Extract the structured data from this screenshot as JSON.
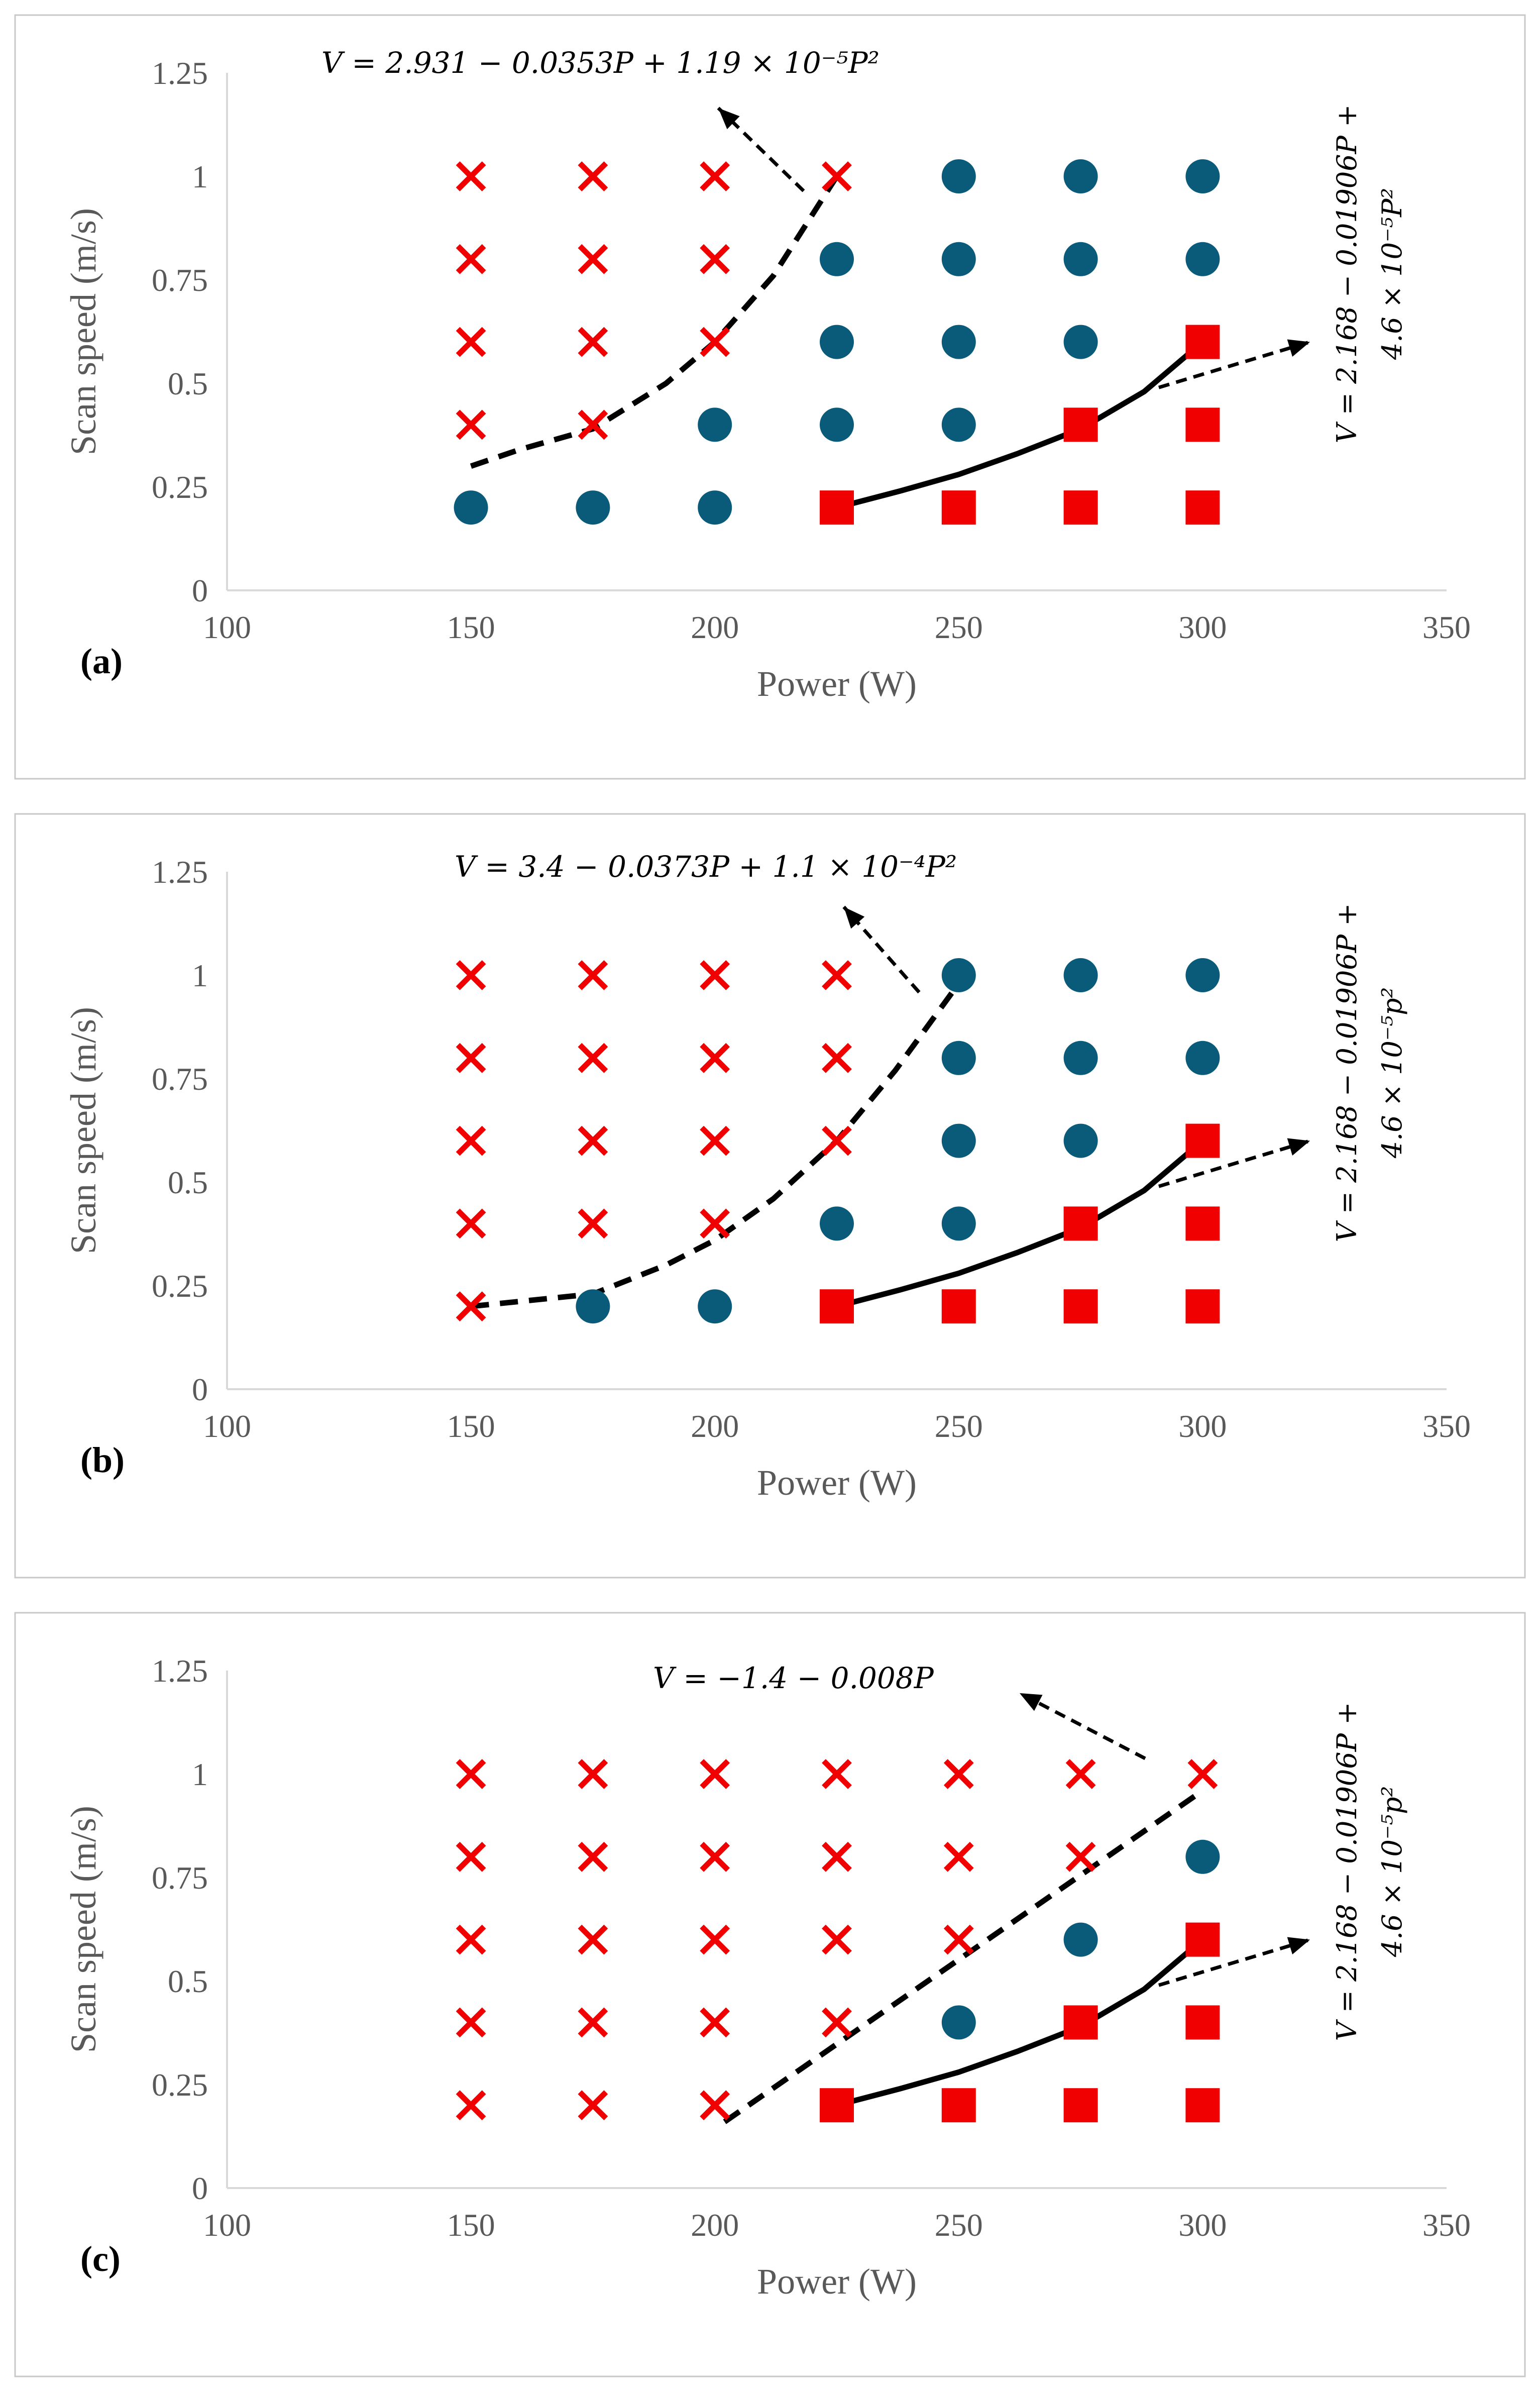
{
  "colors": {
    "circle": "#0a5a7a",
    "square": "#f00000",
    "cross": "#f00000",
    "line": "#000000"
  },
  "chart_data": [
    {
      "type": "scatter",
      "panel_label": "(a)",
      "xlabel": "Power (W)",
      "ylabel": "Scan speed (m/s)",
      "xlim": [
        100,
        350
      ],
      "ylim": [
        0,
        1.25
      ],
      "xticks": [
        "100",
        "150",
        "200",
        "250",
        "300",
        "350"
      ],
      "yticks": [
        "0",
        "0.25",
        "0.5",
        "0.75",
        "1",
        "1.25"
      ],
      "series": [
        {
          "name": "cross",
          "marker": "x",
          "points": [
            [
              150,
              1
            ],
            [
              175,
              1
            ],
            [
              200,
              1
            ],
            [
              225,
              1
            ],
            [
              150,
              0.8
            ],
            [
              175,
              0.8
            ],
            [
              200,
              0.8
            ],
            [
              150,
              0.6
            ],
            [
              175,
              0.6
            ],
            [
              200,
              0.6
            ],
            [
              150,
              0.4
            ],
            [
              175,
              0.4
            ]
          ]
        },
        {
          "name": "circle",
          "marker": "circle",
          "points": [
            [
              250,
              1
            ],
            [
              275,
              1
            ],
            [
              300,
              1
            ],
            [
              225,
              0.8
            ],
            [
              250,
              0.8
            ],
            [
              275,
              0.8
            ],
            [
              300,
              0.8
            ],
            [
              225,
              0.6
            ],
            [
              250,
              0.6
            ],
            [
              275,
              0.6
            ],
            [
              200,
              0.4
            ],
            [
              225,
              0.4
            ],
            [
              250,
              0.4
            ],
            [
              150,
              0.2
            ],
            [
              175,
              0.2
            ],
            [
              200,
              0.2
            ]
          ]
        },
        {
          "name": "square",
          "marker": "square",
          "points": [
            [
              300,
              0.6
            ],
            [
              275,
              0.4
            ],
            [
              300,
              0.4
            ],
            [
              225,
              0.2
            ],
            [
              250,
              0.2
            ],
            [
              275,
              0.2
            ],
            [
              300,
              0.2
            ]
          ]
        }
      ],
      "fit_lines": [
        {
          "style": "dashed",
          "points": [
            [
              150,
              0.3
            ],
            [
              160,
              0.34
            ],
            [
              175,
              0.39
            ],
            [
              190,
              0.5
            ],
            [
              200,
              0.6
            ],
            [
              212,
              0.76
            ],
            [
              225,
              1.0
            ]
          ]
        },
        {
          "style": "solid",
          "points": [
            [
              225,
              0.2
            ],
            [
              238,
              0.24
            ],
            [
              250,
              0.28
            ],
            [
              262,
              0.33
            ],
            [
              275,
              0.39
            ],
            [
              288,
              0.48
            ],
            [
              300,
              0.6
            ]
          ]
        }
      ],
      "equations": {
        "top": "V = 2.931 − 0.0353P + 1.19 × 10⁻⁵P²",
        "right_line1": "V = 2.168 − 0.01906P +",
        "right_line2": "4.6 × 10⁻⁵P²"
      }
    },
    {
      "type": "scatter",
      "panel_label": "(b)",
      "xlabel": "Power (W)",
      "ylabel": "Scan speed (m/s)",
      "xlim": [
        100,
        350
      ],
      "ylim": [
        0,
        1.25
      ],
      "xticks": [
        "100",
        "150",
        "200",
        "250",
        "300",
        "350"
      ],
      "yticks": [
        "0",
        "0.25",
        "0.5",
        "0.75",
        "1",
        "1.25"
      ],
      "series": [
        {
          "name": "cross",
          "marker": "x",
          "points": [
            [
              150,
              1
            ],
            [
              175,
              1
            ],
            [
              200,
              1
            ],
            [
              225,
              1
            ],
            [
              150,
              0.8
            ],
            [
              175,
              0.8
            ],
            [
              200,
              0.8
            ],
            [
              225,
              0.8
            ],
            [
              150,
              0.6
            ],
            [
              175,
              0.6
            ],
            [
              200,
              0.6
            ],
            [
              225,
              0.6
            ],
            [
              150,
              0.4
            ],
            [
              175,
              0.4
            ],
            [
              200,
              0.4
            ],
            [
              150,
              0.2
            ]
          ]
        },
        {
          "name": "circle",
          "marker": "circle",
          "points": [
            [
              250,
              1
            ],
            [
              275,
              1
            ],
            [
              300,
              1
            ],
            [
              250,
              0.8
            ],
            [
              275,
              0.8
            ],
            [
              300,
              0.8
            ],
            [
              250,
              0.6
            ],
            [
              275,
              0.6
            ],
            [
              225,
              0.4
            ],
            [
              250,
              0.4
            ],
            [
              175,
              0.2
            ],
            [
              200,
              0.2
            ]
          ]
        },
        {
          "name": "square",
          "marker": "square",
          "points": [
            [
              300,
              0.6
            ],
            [
              275,
              0.4
            ],
            [
              300,
              0.4
            ],
            [
              225,
              0.2
            ],
            [
              250,
              0.2
            ],
            [
              275,
              0.2
            ],
            [
              300,
              0.2
            ]
          ]
        }
      ],
      "fit_lines": [
        {
          "style": "dashed",
          "points": [
            [
              150,
              0.2
            ],
            [
              175,
              0.23
            ],
            [
              190,
              0.3
            ],
            [
              200,
              0.36
            ],
            [
              212,
              0.46
            ],
            [
              225,
              0.6
            ],
            [
              237,
              0.77
            ],
            [
              250,
              0.98
            ]
          ]
        },
        {
          "style": "solid",
          "points": [
            [
              225,
              0.2
            ],
            [
              238,
              0.24
            ],
            [
              250,
              0.28
            ],
            [
              262,
              0.33
            ],
            [
              275,
              0.39
            ],
            [
              288,
              0.48
            ],
            [
              300,
              0.6
            ]
          ]
        }
      ],
      "equations": {
        "top": "V = 3.4 − 0.0373P + 1.1 × 10⁻⁴P²",
        "right_line1": "V = 2.168 − 0.01906P +",
        "right_line2": "4.6 × 10⁻⁵p²"
      }
    },
    {
      "type": "scatter",
      "panel_label": "(c)",
      "xlabel": "Power (W)",
      "ylabel": "Scan speed (m/s)",
      "xlim": [
        100,
        350
      ],
      "ylim": [
        0,
        1.25
      ],
      "xticks": [
        "100",
        "150",
        "200",
        "250",
        "300",
        "350"
      ],
      "yticks": [
        "0",
        "0.25",
        "0.5",
        "0.75",
        "1",
        "1.25"
      ],
      "series": [
        {
          "name": "cross",
          "marker": "x",
          "points": [
            [
              150,
              1
            ],
            [
              175,
              1
            ],
            [
              200,
              1
            ],
            [
              225,
              1
            ],
            [
              250,
              1
            ],
            [
              275,
              1
            ],
            [
              300,
              1
            ],
            [
              150,
              0.8
            ],
            [
              175,
              0.8
            ],
            [
              200,
              0.8
            ],
            [
              225,
              0.8
            ],
            [
              250,
              0.8
            ],
            [
              275,
              0.8
            ],
            [
              150,
              0.6
            ],
            [
              175,
              0.6
            ],
            [
              200,
              0.6
            ],
            [
              225,
              0.6
            ],
            [
              250,
              0.6
            ],
            [
              150,
              0.4
            ],
            [
              175,
              0.4
            ],
            [
              200,
              0.4
            ],
            [
              225,
              0.4
            ],
            [
              150,
              0.2
            ],
            [
              175,
              0.2
            ],
            [
              200,
              0.2
            ]
          ]
        },
        {
          "name": "circle",
          "marker": "circle",
          "points": [
            [
              300,
              0.8
            ],
            [
              275,
              0.6
            ],
            [
              250,
              0.4
            ]
          ]
        },
        {
          "name": "square",
          "marker": "square",
          "points": [
            [
              300,
              0.6
            ],
            [
              275,
              0.4
            ],
            [
              300,
              0.4
            ],
            [
              225,
              0.2
            ],
            [
              250,
              0.2
            ],
            [
              275,
              0.2
            ],
            [
              300,
              0.2
            ]
          ]
        }
      ],
      "fit_lines": [
        {
          "style": "dashed",
          "points": [
            [
              202,
              0.16
            ],
            [
              300,
              0.96
            ]
          ]
        },
        {
          "style": "solid",
          "points": [
            [
              225,
              0.2
            ],
            [
              238,
              0.24
            ],
            [
              250,
              0.28
            ],
            [
              262,
              0.33
            ],
            [
              275,
              0.39
            ],
            [
              288,
              0.48
            ],
            [
              300,
              0.6
            ]
          ]
        }
      ],
      "equations": {
        "top": "V = −1.4 − 0.008P",
        "right_line1": "V = 2.168 − 0.01906P +",
        "right_line2": "4.6 × 10⁻⁵p²"
      }
    }
  ]
}
